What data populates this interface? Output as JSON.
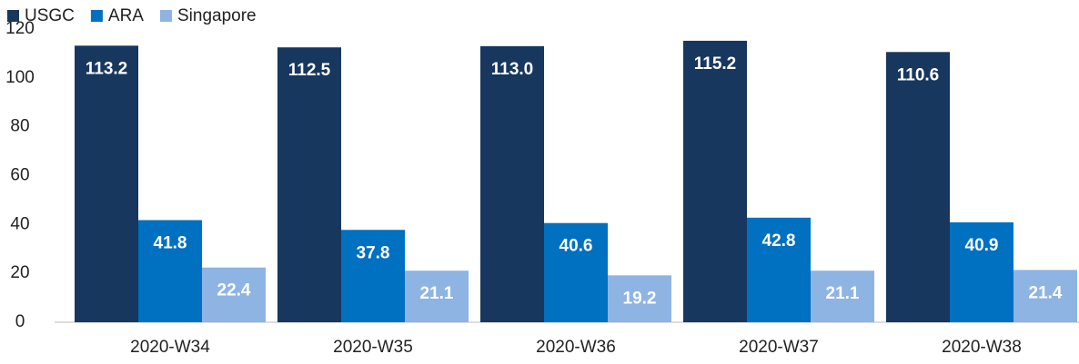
{
  "chart_data": {
    "type": "bar",
    "categories": [
      "2020-W34",
      "2020-W35",
      "2020-W36",
      "2020-W37",
      "2020-W38"
    ],
    "series": [
      {
        "name": "USGC",
        "color": "#17375e",
        "values": [
          113.2,
          112.5,
          113.0,
          115.2,
          110.6
        ],
        "value_labels": [
          "113.2",
          "112.5",
          "113.0",
          "115.2",
          "110.6"
        ]
      },
      {
        "name": "ARA",
        "color": "#0070c0",
        "values": [
          41.8,
          37.8,
          40.6,
          42.8,
          40.9
        ],
        "value_labels": [
          "41.8",
          "37.8",
          "40.6",
          "42.8",
          "40.9"
        ]
      },
      {
        "name": "Singapore",
        "color": "#8eb4e3",
        "values": [
          22.4,
          21.1,
          19.2,
          21.1,
          21.4
        ],
        "value_labels": [
          "22.4",
          "21.1",
          "19.2",
          "21.1",
          "21.4"
        ]
      }
    ],
    "ylim": [
      0,
      120
    ],
    "yticks": [
      0,
      20,
      40,
      60,
      80,
      100,
      120
    ],
    "grid": false,
    "legend": "top-left"
  }
}
